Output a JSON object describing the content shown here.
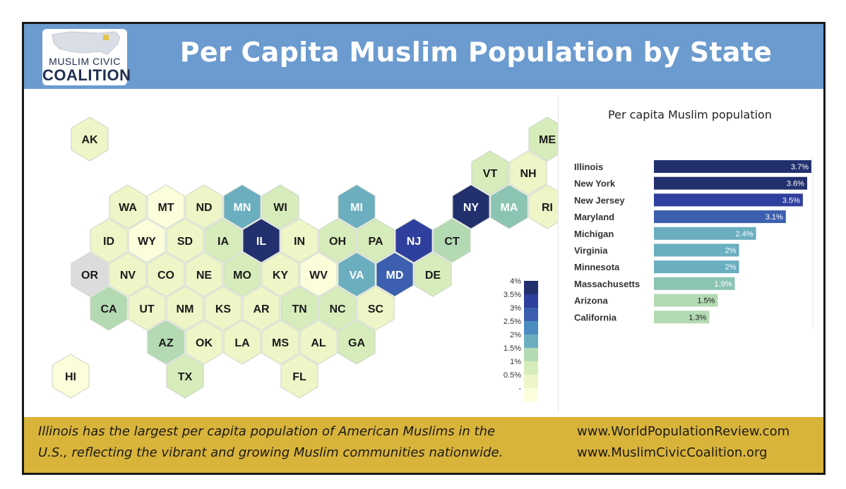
{
  "header": {
    "title": "Per Capita Muslim Population by State",
    "logo_line1": "MUSLIM CIVIC",
    "logo_line2": "COALITION"
  },
  "colors": {
    "header_bg": "#6b9bcf",
    "footer_bg": "#d9b43a",
    "no_data": "#dcdcdc",
    "scale": [
      "#fcfddb",
      "#eef6c8",
      "#d7ecbb",
      "#b4dab4",
      "#8cc4b4",
      "#6aaec0",
      "#4a8cc0",
      "#3c5faf",
      "#2f3f9d",
      "#22306e"
    ]
  },
  "chart_data": [
    {
      "type": "hex-map",
      "legend": {
        "ticks": [
          "4%",
          "3.5%",
          "3%",
          "2.5%",
          "2%",
          "1.5%",
          "1%",
          "0.5%",
          "-"
        ],
        "max": 4
      },
      "states": [
        {
          "code": "AK",
          "row": 0,
          "col": 0,
          "value": 0.4
        },
        {
          "code": "ME",
          "row": 0,
          "col": 12,
          "value": 1.0
        },
        {
          "code": "VT",
          "row": 1,
          "col": 11,
          "value": 1.0
        },
        {
          "code": "NH",
          "row": 1,
          "col": 12,
          "value": 0.6
        },
        {
          "code": "WA",
          "row": 2,
          "col": 1,
          "value": 0.6
        },
        {
          "code": "MT",
          "row": 2,
          "col": 2,
          "value": 0.3
        },
        {
          "code": "ND",
          "row": 2,
          "col": 3,
          "value": 0.4
        },
        {
          "code": "MN",
          "row": 2,
          "col": 4,
          "value": 2.0
        },
        {
          "code": "WI",
          "row": 2,
          "col": 5,
          "value": 1.2
        },
        {
          "code": "MI",
          "row": 2,
          "col": 7,
          "value": 2.4
        },
        {
          "code": "NY",
          "row": 2,
          "col": 10,
          "value": 3.6
        },
        {
          "code": "MA",
          "row": 2,
          "col": 11,
          "value": 1.9
        },
        {
          "code": "RI",
          "row": 2,
          "col": 12,
          "value": 0.6
        },
        {
          "code": "ID",
          "row": 3,
          "col": 1,
          "value": 0.5
        },
        {
          "code": "WY",
          "row": 3,
          "col": 2,
          "value": 0.3
        },
        {
          "code": "SD",
          "row": 3,
          "col": 3,
          "value": 0.4
        },
        {
          "code": "IA",
          "row": 3,
          "col": 4,
          "value": 0.8
        },
        {
          "code": "IL",
          "row": 3,
          "col": 5,
          "value": 3.7
        },
        {
          "code": "IN",
          "row": 3,
          "col": 6,
          "value": 0.7
        },
        {
          "code": "OH",
          "row": 3,
          "col": 7,
          "value": 0.9
        },
        {
          "code": "PA",
          "row": 3,
          "col": 8,
          "value": 1.1
        },
        {
          "code": "NJ",
          "row": 3,
          "col": 9,
          "value": 3.5
        },
        {
          "code": "CT",
          "row": 3,
          "col": 10,
          "value": 1.4
        },
        {
          "code": "OR",
          "row": 4,
          "col": 0,
          "value": null
        },
        {
          "code": "NV",
          "row": 4,
          "col": 1,
          "value": 0.6
        },
        {
          "code": "CO",
          "row": 4,
          "col": 2,
          "value": 0.5
        },
        {
          "code": "NE",
          "row": 4,
          "col": 3,
          "value": 0.5
        },
        {
          "code": "MO",
          "row": 4,
          "col": 4,
          "value": 1.1
        },
        {
          "code": "KY",
          "row": 4,
          "col": 5,
          "value": 0.7
        },
        {
          "code": "WV",
          "row": 4,
          "col": 6,
          "value": 0.3
        },
        {
          "code": "VA",
          "row": 4,
          "col": 7,
          "value": 2.0
        },
        {
          "code": "MD",
          "row": 4,
          "col": 8,
          "value": 3.1
        },
        {
          "code": "DE",
          "row": 4,
          "col": 9,
          "value": 0.9
        },
        {
          "code": "CA",
          "row": 5,
          "col": 1,
          "value": 1.3
        },
        {
          "code": "UT",
          "row": 5,
          "col": 2,
          "value": 0.6
        },
        {
          "code": "NM",
          "row": 5,
          "col": 3,
          "value": 0.5
        },
        {
          "code": "KS",
          "row": 5,
          "col": 4,
          "value": 0.6
        },
        {
          "code": "AR",
          "row": 5,
          "col": 5,
          "value": 0.5
        },
        {
          "code": "TN",
          "row": 5,
          "col": 6,
          "value": 0.9
        },
        {
          "code": "NC",
          "row": 5,
          "col": 7,
          "value": 1.2
        },
        {
          "code": "SC",
          "row": 5,
          "col": 8,
          "value": 0.4
        },
        {
          "code": "AZ",
          "row": 6,
          "col": 2,
          "value": 1.5
        },
        {
          "code": "OK",
          "row": 6,
          "col": 3,
          "value": 0.7
        },
        {
          "code": "LA",
          "row": 6,
          "col": 4,
          "value": 0.6
        },
        {
          "code": "MS",
          "row": 6,
          "col": 5,
          "value": 0.4
        },
        {
          "code": "AL",
          "row": 6,
          "col": 6,
          "value": 0.6
        },
        {
          "code": "GA",
          "row": 6,
          "col": 7,
          "value": 1.1
        },
        {
          "code": "HI",
          "row": 7,
          "col": 0,
          "value": 0.3
        },
        {
          "code": "TX",
          "row": 7,
          "col": 3,
          "value": 1.2
        },
        {
          "code": "FL",
          "row": 7,
          "col": 6,
          "value": 0.6
        }
      ]
    },
    {
      "type": "bar",
      "orientation": "horizontal",
      "title": "Per capita Muslim population",
      "categories": [
        "Illinois",
        "New York",
        "New Jersey",
        "Maryland",
        "Michigan",
        "Virginia",
        "Minnesota",
        "Massachusetts",
        "Arizona",
        "California"
      ],
      "values": [
        3.7,
        3.6,
        3.5,
        3.1,
        2.4,
        2.0,
        2.0,
        1.9,
        1.5,
        1.3
      ],
      "value_labels": [
        "3.7%",
        "3.6%",
        "3.5%",
        "3.1%",
        "2.4%",
        "2%",
        "2%",
        "1.9%",
        "1.5%",
        "1.3%"
      ],
      "xlim": [
        0,
        3.7
      ]
    }
  ],
  "footer": {
    "left_line1": "Illinois has the largest per capita population of American Muslims in the",
    "left_line2": "U.S., reflecting the vibrant and growing Muslim communities nationwide.",
    "right_line1": "www.WorldPopulationReview.com",
    "right_line2": "www.MuslimCivicCoalition.org"
  }
}
